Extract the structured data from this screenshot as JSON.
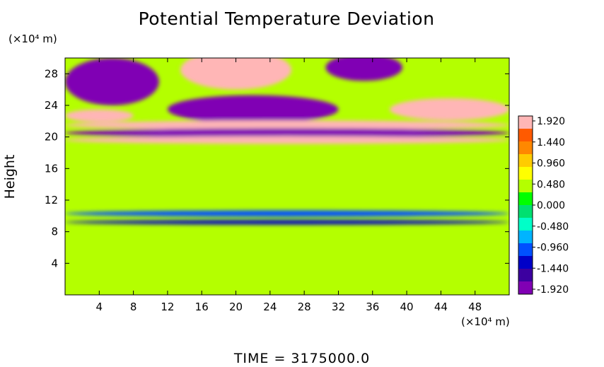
{
  "chart_data": {
    "type": "heatmap",
    "title": "Potential Temperature Deviation",
    "ylabel": "Height",
    "x_unit_label": "(×10⁴ m)",
    "y_unit_label": "(×10⁴ m)",
    "footer": "TIME  =  3175000.0",
    "xlim": [
      0,
      52
    ],
    "ylim": [
      0,
      30
    ],
    "x_ticks": [
      4,
      8,
      12,
      16,
      20,
      24,
      28,
      32,
      36,
      40,
      44,
      48
    ],
    "y_ticks": [
      4,
      8,
      12,
      16,
      20,
      24,
      28
    ],
    "colorbar": {
      "min": -1.92,
      "max": 1.92,
      "ticks": [
        "1.920",
        "1.440",
        "0.960",
        "0.480",
        "0.000",
        "-0.480",
        "-0.960",
        "-1.440",
        "-1.920"
      ],
      "colors": [
        "#ffb6b6",
        "#ff5a00",
        "#ff8800",
        "#ffcc00",
        "#ffff00",
        "#b4ff00",
        "#00ff00",
        "#00e070",
        "#00ffc8",
        "#00b4ff",
        "#0050ff",
        "#0000c8",
        "#3c00a0",
        "#8000b4"
      ]
    },
    "features": [
      {
        "cx": 5.5,
        "cy": 27.0,
        "rx": 5.5,
        "ry": 3.0,
        "value": -1.9
      },
      {
        "cx": 20.0,
        "cy": 28.5,
        "rx": 6.5,
        "ry": 2.5,
        "value": 1.9
      },
      {
        "cx": 35.0,
        "cy": 28.8,
        "rx": 4.5,
        "ry": 1.7,
        "value": -1.9
      },
      {
        "cx": 22.0,
        "cy": 23.5,
        "rx": 10.0,
        "ry": 1.8,
        "value": -1.9
      },
      {
        "cx": 45.0,
        "cy": 23.5,
        "rx": 7.0,
        "ry": 1.4,
        "value": 1.9
      },
      {
        "cx": 4.0,
        "cy": 22.7,
        "rx": 4.0,
        "ry": 0.8,
        "value": 1.9
      },
      {
        "cx": 26.0,
        "cy": 21.5,
        "rx": 26.0,
        "ry": 0.6,
        "value": 1.9
      },
      {
        "cx": 26.0,
        "cy": 20.5,
        "rx": 26.0,
        "ry": 0.6,
        "value": -1.9
      },
      {
        "cx": 26.0,
        "cy": 19.6,
        "rx": 26.0,
        "ry": 0.5,
        "value": 1.9
      },
      {
        "cx": 26.0,
        "cy": 10.3,
        "rx": 26.0,
        "ry": 0.4,
        "value": -0.9
      },
      {
        "cx": 26.0,
        "cy": 9.2,
        "rx": 26.0,
        "ry": 0.3,
        "value": -1.3
      }
    ]
  }
}
